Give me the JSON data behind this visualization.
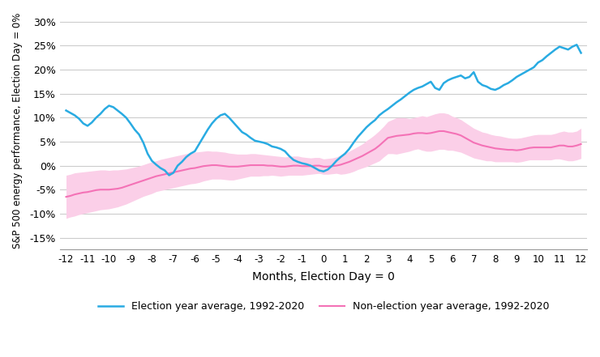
{
  "x_ticks": [
    -12,
    -11,
    -10,
    -9,
    -8,
    -7,
    -6,
    -5,
    -4,
    -3,
    -2,
    -1,
    0,
    1,
    2,
    3,
    4,
    5,
    6,
    7,
    8,
    9,
    10,
    11,
    12
  ],
  "xlabel": "Months, Election Day = 0",
  "ylabel": "S&P 500 energy performance, Election Day = 0%",
  "ylim": [
    -0.175,
    0.32
  ],
  "yticks": [
    -0.15,
    -0.1,
    -0.05,
    0.0,
    0.05,
    0.1,
    0.15,
    0.2,
    0.25,
    0.3
  ],
  "election_color": "#29ABE2",
  "non_election_color": "#F472B6",
  "non_election_band_color": "#FBCFE8",
  "legend_election": "Election year average, 1992-2020",
  "legend_non_election": "Non-election year average, 1992-2020",
  "election_x": [
    -12.0,
    -11.8,
    -11.6,
    -11.4,
    -11.2,
    -11.0,
    -10.8,
    -10.6,
    -10.4,
    -10.2,
    -10.0,
    -9.8,
    -9.6,
    -9.4,
    -9.2,
    -9.0,
    -8.8,
    -8.6,
    -8.4,
    -8.2,
    -8.0,
    -7.8,
    -7.6,
    -7.4,
    -7.2,
    -7.0,
    -6.8,
    -6.6,
    -6.4,
    -6.2,
    -6.0,
    -5.8,
    -5.6,
    -5.4,
    -5.2,
    -5.0,
    -4.8,
    -4.6,
    -4.4,
    -4.2,
    -4.0,
    -3.8,
    -3.6,
    -3.4,
    -3.2,
    -3.0,
    -2.8,
    -2.6,
    -2.4,
    -2.2,
    -2.0,
    -1.8,
    -1.6,
    -1.4,
    -1.2,
    -1.0,
    -0.8,
    -0.6,
    -0.4,
    -0.2,
    0.0,
    0.2,
    0.4,
    0.6,
    0.8,
    1.0,
    1.2,
    1.4,
    1.6,
    1.8,
    2.0,
    2.2,
    2.4,
    2.6,
    2.8,
    3.0,
    3.2,
    3.4,
    3.6,
    3.8,
    4.0,
    4.2,
    4.4,
    4.6,
    4.8,
    5.0,
    5.2,
    5.4,
    5.6,
    5.8,
    6.0,
    6.2,
    6.4,
    6.6,
    6.8,
    7.0,
    7.2,
    7.4,
    7.6,
    7.8,
    8.0,
    8.2,
    8.4,
    8.6,
    8.8,
    9.0,
    9.2,
    9.4,
    9.6,
    9.8,
    10.0,
    10.2,
    10.4,
    10.6,
    10.8,
    11.0,
    11.2,
    11.4,
    11.6,
    11.8,
    12.0
  ],
  "election_y": [
    0.115,
    0.11,
    0.105,
    0.098,
    0.088,
    0.083,
    0.09,
    0.1,
    0.108,
    0.118,
    0.125,
    0.122,
    0.115,
    0.108,
    0.1,
    0.088,
    0.075,
    0.065,
    0.048,
    0.025,
    0.01,
    0.002,
    -0.005,
    -0.01,
    -0.02,
    -0.015,
    0.0,
    0.008,
    0.018,
    0.025,
    0.03,
    0.045,
    0.06,
    0.075,
    0.088,
    0.098,
    0.105,
    0.108,
    0.1,
    0.09,
    0.08,
    0.07,
    0.065,
    0.058,
    0.052,
    0.05,
    0.048,
    0.045,
    0.04,
    0.038,
    0.035,
    0.03,
    0.02,
    0.012,
    0.008,
    0.005,
    0.003,
    0.0,
    -0.005,
    -0.01,
    -0.012,
    -0.008,
    0.0,
    0.01,
    0.018,
    0.025,
    0.035,
    0.048,
    0.06,
    0.07,
    0.08,
    0.088,
    0.095,
    0.105,
    0.112,
    0.118,
    0.125,
    0.132,
    0.138,
    0.145,
    0.152,
    0.158,
    0.162,
    0.165,
    0.17,
    0.175,
    0.162,
    0.158,
    0.172,
    0.178,
    0.182,
    0.185,
    0.188,
    0.182,
    0.185,
    0.195,
    0.175,
    0.168,
    0.165,
    0.16,
    0.158,
    0.162,
    0.168,
    0.172,
    0.178,
    0.185,
    0.19,
    0.195,
    0.2,
    0.205,
    0.215,
    0.22,
    0.228,
    0.235,
    0.242,
    0.248,
    0.245,
    0.242,
    0.248,
    0.252,
    0.235
  ],
  "non_election_x": [
    -12.0,
    -11.8,
    -11.6,
    -11.4,
    -11.2,
    -11.0,
    -10.8,
    -10.6,
    -10.4,
    -10.2,
    -10.0,
    -9.8,
    -9.6,
    -9.4,
    -9.2,
    -9.0,
    -8.8,
    -8.6,
    -8.4,
    -8.2,
    -8.0,
    -7.8,
    -7.6,
    -7.4,
    -7.2,
    -7.0,
    -6.8,
    -6.6,
    -6.4,
    -6.2,
    -6.0,
    -5.8,
    -5.6,
    -5.4,
    -5.2,
    -5.0,
    -4.8,
    -4.6,
    -4.4,
    -4.2,
    -4.0,
    -3.8,
    -3.6,
    -3.4,
    -3.2,
    -3.0,
    -2.8,
    -2.6,
    -2.4,
    -2.2,
    -2.0,
    -1.8,
    -1.6,
    -1.4,
    -1.2,
    -1.0,
    -0.8,
    -0.6,
    -0.4,
    -0.2,
    0.0,
    0.2,
    0.4,
    0.6,
    0.8,
    1.0,
    1.2,
    1.4,
    1.6,
    1.8,
    2.0,
    2.2,
    2.4,
    2.6,
    2.8,
    3.0,
    3.2,
    3.4,
    3.6,
    3.8,
    4.0,
    4.2,
    4.4,
    4.6,
    4.8,
    5.0,
    5.2,
    5.4,
    5.6,
    5.8,
    6.0,
    6.2,
    6.4,
    6.6,
    6.8,
    7.0,
    7.2,
    7.4,
    7.6,
    7.8,
    8.0,
    8.2,
    8.4,
    8.6,
    8.8,
    9.0,
    9.2,
    9.4,
    9.6,
    9.8,
    10.0,
    10.2,
    10.4,
    10.6,
    10.8,
    11.0,
    11.2,
    11.4,
    11.6,
    11.8,
    12.0
  ],
  "non_election_mean": [
    -0.065,
    -0.063,
    -0.06,
    -0.058,
    -0.056,
    -0.055,
    -0.053,
    -0.051,
    -0.05,
    -0.05,
    -0.05,
    -0.049,
    -0.048,
    -0.046,
    -0.043,
    -0.04,
    -0.037,
    -0.034,
    -0.031,
    -0.028,
    -0.025,
    -0.022,
    -0.02,
    -0.018,
    -0.016,
    -0.014,
    -0.012,
    -0.01,
    -0.008,
    -0.006,
    -0.005,
    -0.003,
    -0.001,
    0.0,
    0.001,
    0.001,
    0.0,
    -0.001,
    -0.002,
    -0.002,
    -0.002,
    -0.001,
    0.0,
    0.001,
    0.001,
    0.001,
    0.001,
    0.0,
    0.0,
    -0.001,
    -0.002,
    -0.002,
    -0.001,
    0.0,
    0.0,
    -0.001,
    -0.001,
    -0.001,
    0.0,
    0.0,
    -0.002,
    -0.002,
    -0.001,
    0.0,
    0.002,
    0.005,
    0.008,
    0.012,
    0.016,
    0.02,
    0.025,
    0.03,
    0.035,
    0.042,
    0.05,
    0.058,
    0.06,
    0.062,
    0.063,
    0.064,
    0.065,
    0.067,
    0.068,
    0.068,
    0.067,
    0.068,
    0.07,
    0.072,
    0.072,
    0.07,
    0.068,
    0.066,
    0.063,
    0.058,
    0.053,
    0.048,
    0.045,
    0.042,
    0.04,
    0.038,
    0.036,
    0.035,
    0.034,
    0.033,
    0.033,
    0.032,
    0.033,
    0.035,
    0.037,
    0.038,
    0.038,
    0.038,
    0.038,
    0.038,
    0.04,
    0.042,
    0.042,
    0.04,
    0.04,
    0.042,
    0.045
  ],
  "non_election_upper": [
    -0.02,
    -0.018,
    -0.015,
    -0.014,
    -0.013,
    -0.012,
    -0.011,
    -0.01,
    -0.009,
    -0.009,
    -0.01,
    -0.009,
    -0.009,
    -0.008,
    -0.007,
    -0.005,
    -0.003,
    -0.001,
    0.002,
    0.005,
    0.008,
    0.01,
    0.013,
    0.015,
    0.017,
    0.019,
    0.021,
    0.023,
    0.025,
    0.027,
    0.028,
    0.029,
    0.03,
    0.031,
    0.03,
    0.03,
    0.029,
    0.028,
    0.026,
    0.025,
    0.024,
    0.024,
    0.024,
    0.025,
    0.025,
    0.024,
    0.023,
    0.022,
    0.021,
    0.02,
    0.019,
    0.018,
    0.019,
    0.02,
    0.02,
    0.018,
    0.017,
    0.016,
    0.017,
    0.017,
    0.014,
    0.015,
    0.016,
    0.018,
    0.022,
    0.026,
    0.03,
    0.035,
    0.04,
    0.045,
    0.052,
    0.058,
    0.065,
    0.073,
    0.082,
    0.092,
    0.096,
    0.1,
    0.1,
    0.1,
    0.098,
    0.1,
    0.102,
    0.104,
    0.102,
    0.105,
    0.108,
    0.11,
    0.11,
    0.108,
    0.103,
    0.1,
    0.096,
    0.09,
    0.084,
    0.078,
    0.074,
    0.07,
    0.068,
    0.065,
    0.063,
    0.062,
    0.06,
    0.058,
    0.057,
    0.057,
    0.058,
    0.06,
    0.062,
    0.064,
    0.065,
    0.065,
    0.065,
    0.065,
    0.067,
    0.07,
    0.072,
    0.07,
    0.07,
    0.072,
    0.078
  ],
  "non_election_lower": [
    -0.11,
    -0.107,
    -0.105,
    -0.102,
    -0.1,
    -0.098,
    -0.096,
    -0.094,
    -0.092,
    -0.091,
    -0.09,
    -0.088,
    -0.086,
    -0.083,
    -0.08,
    -0.076,
    -0.072,
    -0.068,
    -0.064,
    -0.061,
    -0.058,
    -0.054,
    -0.052,
    -0.05,
    -0.048,
    -0.046,
    -0.044,
    -0.042,
    -0.04,
    -0.038,
    -0.037,
    -0.035,
    -0.032,
    -0.03,
    -0.028,
    -0.028,
    -0.028,
    -0.029,
    -0.03,
    -0.03,
    -0.028,
    -0.026,
    -0.024,
    -0.022,
    -0.022,
    -0.022,
    -0.021,
    -0.021,
    -0.02,
    -0.021,
    -0.022,
    -0.021,
    -0.02,
    -0.02,
    -0.02,
    -0.02,
    -0.019,
    -0.018,
    -0.017,
    -0.016,
    -0.018,
    -0.018,
    -0.017,
    -0.016,
    -0.018,
    -0.017,
    -0.015,
    -0.012,
    -0.008,
    -0.005,
    -0.002,
    0.002,
    0.006,
    0.01,
    0.018,
    0.025,
    0.025,
    0.024,
    0.026,
    0.028,
    0.03,
    0.033,
    0.035,
    0.032,
    0.03,
    0.03,
    0.032,
    0.034,
    0.034,
    0.032,
    0.032,
    0.03,
    0.028,
    0.024,
    0.02,
    0.016,
    0.014,
    0.012,
    0.01,
    0.01,
    0.008,
    0.008,
    0.008,
    0.008,
    0.008,
    0.007,
    0.008,
    0.01,
    0.012,
    0.012,
    0.012,
    0.012,
    0.012,
    0.012,
    0.014,
    0.014,
    0.012,
    0.01,
    0.01,
    0.012,
    0.015
  ],
  "background_color": "#FFFFFF",
  "grid_color": "#CCCCCC"
}
